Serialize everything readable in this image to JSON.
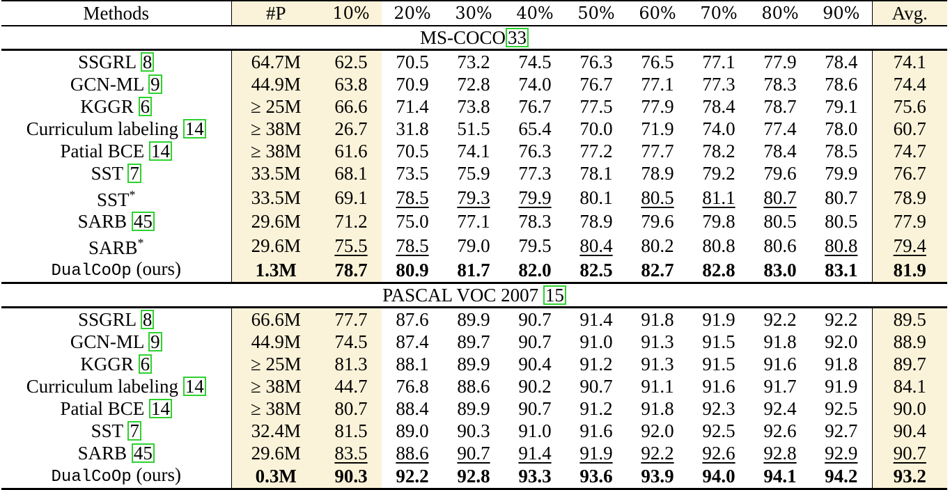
{
  "columns": {
    "method": "Methods",
    "params": "#P",
    "ratios": [
      "10%",
      "20%",
      "30%",
      "40%",
      "50%",
      "60%",
      "70%",
      "80%",
      "90%"
    ],
    "avg": "Avg."
  },
  "sections": [
    {
      "title": "MS-COCO",
      "ref": "33",
      "rows": [
        {
          "name": "SSGRL ",
          "ref": "8",
          "sup": "",
          "mono": false,
          "params": "64.7M",
          "values": [
            "62.5",
            "70.5",
            "73.2",
            "74.5",
            "76.3",
            "76.5",
            "77.1",
            "77.9",
            "78.4"
          ],
          "avg": "74.1",
          "bold": false,
          "underline": []
        },
        {
          "name": "GCN-ML ",
          "ref": "9",
          "sup": "",
          "mono": false,
          "params": "44.9M",
          "values": [
            "63.8",
            "70.9",
            "72.8",
            "74.0",
            "76.7",
            "77.1",
            "77.3",
            "78.3",
            "78.6"
          ],
          "avg": "74.4",
          "bold": false,
          "underline": []
        },
        {
          "name": "KGGR ",
          "ref": "6",
          "sup": "",
          "mono": false,
          "params": "≥ 25M",
          "values": [
            "66.6",
            "71.4",
            "73.8",
            "76.7",
            "77.5",
            "77.9",
            "78.4",
            "78.7",
            "79.1"
          ],
          "avg": "75.6",
          "bold": false,
          "underline": []
        },
        {
          "name": "Curriculum labeling ",
          "ref": "14",
          "sup": "",
          "mono": false,
          "params": "≥ 38M",
          "values": [
            "26.7",
            "31.8",
            "51.5",
            "65.4",
            "70.0",
            "71.9",
            "74.0",
            "77.4",
            "78.0"
          ],
          "avg": "60.7",
          "bold": false,
          "underline": []
        },
        {
          "name": "Patial BCE ",
          "ref": "14",
          "sup": "",
          "mono": false,
          "params": "≥ 38M",
          "values": [
            "61.6",
            "70.5",
            "74.1",
            "76.3",
            "77.2",
            "77.7",
            "78.2",
            "78.4",
            "78.5"
          ],
          "avg": "74.7",
          "bold": false,
          "underline": []
        },
        {
          "name": "SST ",
          "ref": "7",
          "sup": "",
          "mono": false,
          "params": "33.5M",
          "values": [
            "68.1",
            "73.5",
            "75.9",
            "77.3",
            "78.1",
            "78.9",
            "79.2",
            "79.6",
            "79.9"
          ],
          "avg": "76.7",
          "bold": false,
          "underline": []
        },
        {
          "name": "SST",
          "ref": "",
          "sup": "*",
          "mono": false,
          "params": "33.5M",
          "values": [
            "69.1",
            "78.5",
            "79.3",
            "79.9",
            "80.1",
            "80.5",
            "81.1",
            "80.7",
            "80.7"
          ],
          "avg": "78.9",
          "bold": false,
          "underline": [
            1,
            2,
            3,
            5,
            6,
            7
          ]
        },
        {
          "name": "SARB ",
          "ref": "45",
          "sup": "",
          "mono": false,
          "params": "29.6M",
          "values": [
            "71.2",
            "75.0",
            "77.1",
            "78.3",
            "78.9",
            "79.6",
            "79.8",
            "80.5",
            "80.5"
          ],
          "avg": "77.9",
          "bold": false,
          "underline": []
        },
        {
          "name": "SARB",
          "ref": "",
          "sup": "*",
          "mono": false,
          "params": "29.6M",
          "values": [
            "75.5",
            "78.5",
            "79.0",
            "79.5",
            "80.4",
            "80.2",
            "80.8",
            "80.6",
            "80.8"
          ],
          "avg": "79.4",
          "bold": false,
          "underline": [
            0,
            1,
            4,
            8,
            9
          ]
        },
        {
          "name": "DualCoOp",
          "suffix": " (ours)",
          "ref": "",
          "sup": "",
          "mono": true,
          "params": "1.3M",
          "values": [
            "78.7",
            "80.9",
            "81.7",
            "82.0",
            "82.5",
            "82.7",
            "82.8",
            "83.0",
            "83.1"
          ],
          "avg": "81.9",
          "bold": true,
          "underline": []
        }
      ]
    },
    {
      "title": "PASCAL VOC 2007  ",
      "ref": "15",
      "rows": [
        {
          "name": "SSGRL ",
          "ref": "8",
          "sup": "",
          "mono": false,
          "params": "66.6M",
          "values": [
            "77.7",
            "87.6",
            "89.9",
            "90.7",
            "91.4",
            "91.8",
            "91.9",
            "92.2",
            "92.2"
          ],
          "avg": "89.5",
          "bold": false,
          "underline": []
        },
        {
          "name": "GCN-ML ",
          "ref": "9",
          "sup": "",
          "mono": false,
          "params": "44.9M",
          "values": [
            "74.5",
            "87.4",
            "89.7",
            "90.7",
            "91.0",
            "91.3",
            "91.5",
            "91.8",
            "92.0"
          ],
          "avg": "88.9",
          "bold": false,
          "underline": []
        },
        {
          "name": "KGGR ",
          "ref": "6",
          "sup": "",
          "mono": false,
          "params": "≥ 25M",
          "values": [
            "81.3",
            "88.1",
            "89.9",
            "90.4",
            "91.2",
            "91.3",
            "91.5",
            "91.6",
            "91.8"
          ],
          "avg": "89.7",
          "bold": false,
          "underline": []
        },
        {
          "name": "Curriculum labeling ",
          "ref": "14",
          "sup": "",
          "mono": false,
          "params": "≥ 38M",
          "values": [
            "44.7",
            "76.8",
            "88.6",
            "90.2",
            "90.7",
            "91.1",
            "91.6",
            "91.7",
            "91.9"
          ],
          "avg": "84.1",
          "bold": false,
          "underline": []
        },
        {
          "name": "Patial BCE ",
          "ref": "14",
          "sup": "",
          "mono": false,
          "params": "≥ 38M",
          "values": [
            "80.7",
            "88.4",
            "89.9",
            "90.7",
            "91.2",
            "91.8",
            "92.3",
            "92.4",
            "92.5"
          ],
          "avg": "90.0",
          "bold": false,
          "underline": []
        },
        {
          "name": "SST ",
          "ref": "7",
          "sup": "",
          "mono": false,
          "params": "32.4M",
          "values": [
            "81.5",
            "89.0",
            "90.3",
            "91.0",
            "91.6",
            "92.0",
            "92.5",
            "92.6",
            "92.7"
          ],
          "avg": "90.4",
          "bold": false,
          "underline": []
        },
        {
          "name": "SARB ",
          "ref": "45",
          "sup": "",
          "mono": false,
          "params": "29.6M",
          "values": [
            "83.5",
            "88.6",
            "90.7",
            "91.4",
            "91.9",
            "92.2",
            "92.6",
            "92.8",
            "92.9"
          ],
          "avg": "90.7",
          "bold": false,
          "underline": [
            0,
            1,
            2,
            3,
            4,
            5,
            6,
            7,
            8,
            9
          ]
        },
        {
          "name": "DualCoOp",
          "suffix": " (ours)",
          "ref": "",
          "sup": "",
          "mono": true,
          "params": "0.3M",
          "values": [
            "90.3",
            "92.2",
            "92.8",
            "93.3",
            "93.6",
            "93.9",
            "94.0",
            "94.1",
            "94.2"
          ],
          "avg": "93.2",
          "bold": true,
          "underline": []
        }
      ]
    }
  ]
}
